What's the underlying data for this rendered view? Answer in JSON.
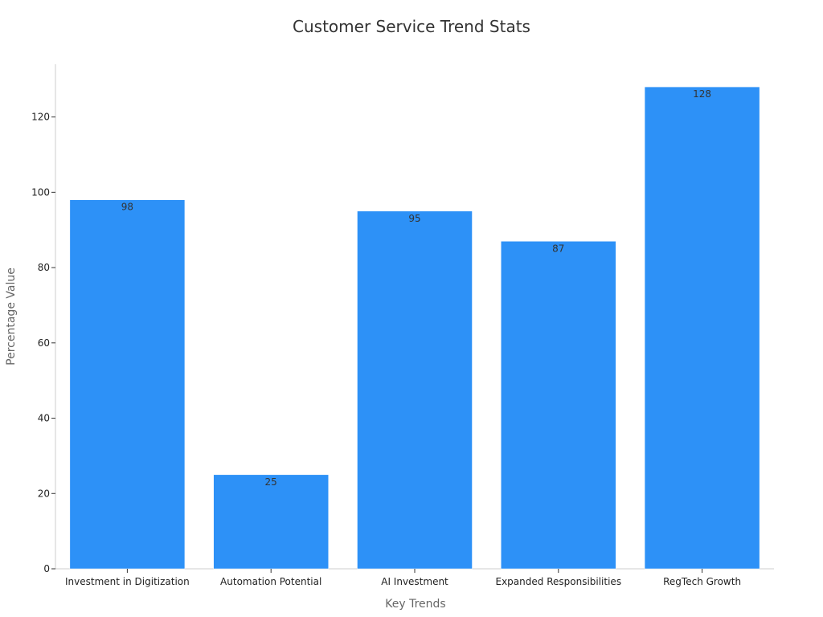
{
  "colors": {
    "bar": "#2d91f7",
    "axis": "#cccccc",
    "tick": "#333333"
  },
  "chart_data": {
    "type": "bar",
    "title": "Customer Service Trend Stats",
    "xlabel": "Key Trends",
    "ylabel": "Percentage Value",
    "categories": [
      "Investment in Digitization",
      "Automation Potential",
      "AI Investment",
      "Expanded Responsibilities",
      "RegTech Growth"
    ],
    "values": [
      98,
      25,
      95,
      87,
      128
    ],
    "ylim": [
      0,
      134
    ],
    "yticks": [
      0,
      20,
      40,
      60,
      80,
      100,
      120
    ],
    "data_labels": true,
    "grid": false,
    "legend": "none"
  }
}
